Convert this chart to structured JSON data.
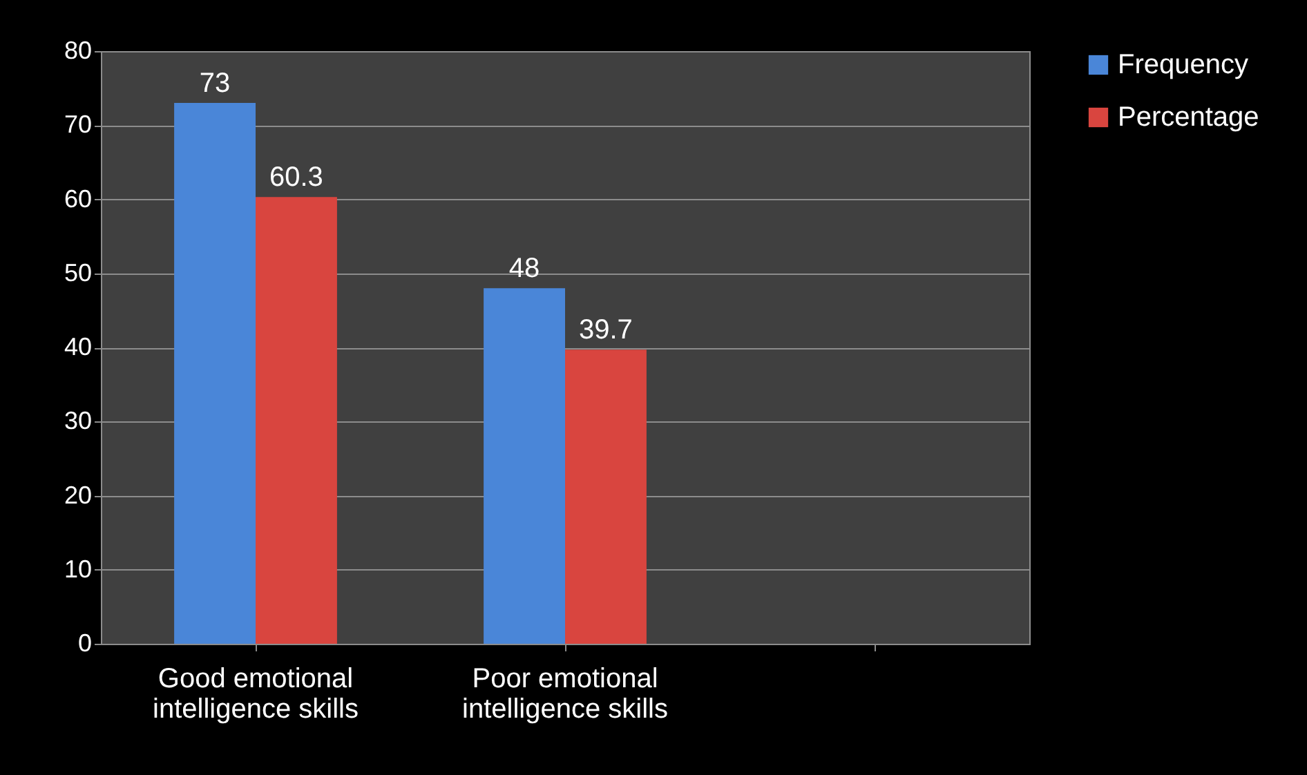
{
  "chart_data": {
    "type": "bar",
    "categories": [
      "Good emotional intelligence skills",
      "Poor emotional intelligence skills",
      null
    ],
    "series": [
      {
        "name": "Frequency",
        "color": "#4a86d8",
        "values": [
          73,
          48,
          null
        ]
      },
      {
        "name": "Percentage",
        "color": "#d9453f",
        "values": [
          60.3,
          39.7,
          null
        ]
      }
    ],
    "ylim": [
      0,
      80
    ],
    "yticks": [
      0,
      10,
      20,
      30,
      40,
      50,
      60,
      70,
      80
    ],
    "grid": "y",
    "legend": "right",
    "data_labels": true
  }
}
